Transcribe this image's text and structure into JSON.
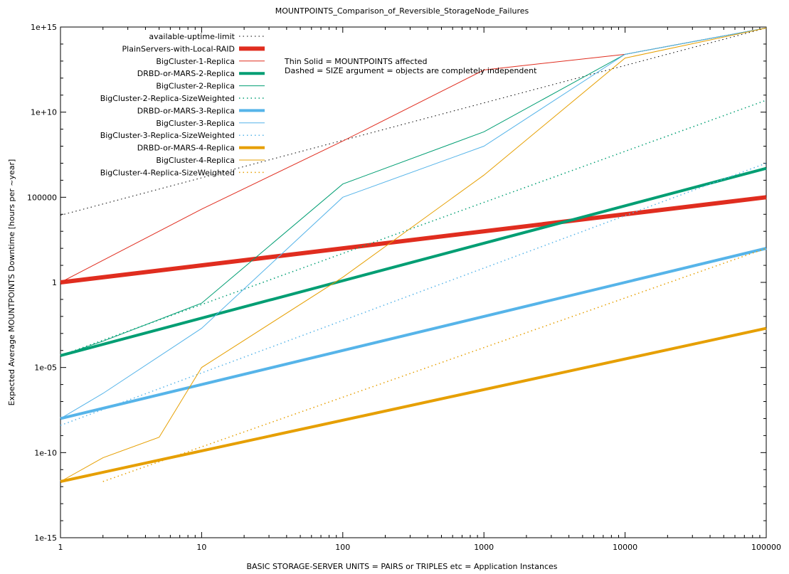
{
  "chart_data": {
    "type": "line",
    "title": "MOUNTPOINTS_Comparison_of_Reversible_StorageNode_Failures",
    "xlabel": "BASIC STORAGE-SERVER UNITS = PAIRS or TRIPLES etc = Application Instances",
    "ylabel": "Expected Average MOUNTPOINTS Downtime [hours per ~year]",
    "xscale": "log",
    "yscale": "log",
    "xlim": [
      1,
      100000
    ],
    "ylim": [
      1e-15,
      1000000000000000.0
    ],
    "x_ticks": [
      {
        "v": 1,
        "label": "1"
      },
      {
        "v": 10,
        "label": "10"
      },
      {
        "v": 100,
        "label": "100"
      },
      {
        "v": 1000,
        "label": "1000"
      },
      {
        "v": 10000,
        "label": "10000"
      },
      {
        "v": 100000,
        "label": "100000"
      }
    ],
    "y_ticks": [
      {
        "v": 1e-15,
        "label": "1e-15"
      },
      {
        "v": 1e-10,
        "label": "1e-10"
      },
      {
        "v": 1e-05,
        "label": "1e-05"
      },
      {
        "v": 1,
        "label": "1"
      },
      {
        "v": 100000.0,
        "label": "100000"
      },
      {
        "v": 10000000000.0,
        "label": "1e+10"
      },
      {
        "v": 1000000000000000.0,
        "label": "1e+15"
      }
    ],
    "grid": false,
    "legend_position": "top-left",
    "annotations": [
      "Thin Solid = MOUNTPOINTS affected",
      "Dashed = SIZE argument = objects are completely independent"
    ],
    "series": [
      {
        "name": "available-uptime-limit",
        "color": "#000000",
        "style": "dotted",
        "width": 1,
        "x": [
          1,
          100000
        ],
        "y": [
          8760,
          876000000000000
        ]
      },
      {
        "name": "PlainServers-with-Local-RAID",
        "color": "#e02d1f",
        "style": "solid",
        "width": 6,
        "x": [
          1,
          100000
        ],
        "y": [
          1,
          100000
        ]
      },
      {
        "name": "BigCluster-1-Replica",
        "color": "#e02d1f",
        "style": "solid",
        "width": 1,
        "x": [
          1,
          10,
          100,
          1000,
          10000,
          100000
        ],
        "y": [
          1,
          20000,
          200000000,
          3000000000000,
          25000000000000,
          876000000000000
        ]
      },
      {
        "name": "DRBD-or-MARS-2-Replica",
        "color": "#009e73",
        "style": "solid",
        "width": 4,
        "x": [
          1,
          100000
        ],
        "y": [
          5e-05,
          5000000
        ]
      },
      {
        "name": "BigCluster-2-Replica",
        "color": "#009e73",
        "style": "solid",
        "width": 1,
        "x": [
          1,
          2,
          10,
          100,
          1000,
          10000,
          100000
        ],
        "y": [
          5e-05,
          0.00035,
          0.06,
          600000,
          700000000,
          25000000000000,
          876000000000000
        ]
      },
      {
        "name": "BigCluster-2-Replica-SizeWeighted",
        "color": "#009e73",
        "style": "dotted",
        "width": 1.5,
        "x": [
          1,
          100000
        ],
        "y": [
          5e-05,
          50000000000
        ]
      },
      {
        "name": "DRBD-or-MARS-3-Replica",
        "color": "#56b4e9",
        "style": "solid",
        "width": 4,
        "x": [
          1,
          100000
        ],
        "y": [
          1e-08,
          100
        ]
      },
      {
        "name": "BigCluster-3-Replica",
        "color": "#56b4e9",
        "style": "solid",
        "width": 1,
        "x": [
          1,
          2,
          10,
          100,
          1000,
          10000,
          100000
        ],
        "y": [
          1e-08,
          3e-07,
          0.002,
          100000,
          100000000,
          25000000000000,
          876000000000000
        ]
      },
      {
        "name": "BigCluster-3-Replica-SizeWeighted",
        "color": "#56b4e9",
        "style": "dotted",
        "width": 1.5,
        "x": [
          1,
          100000
        ],
        "y": [
          4e-09,
          10000000
        ]
      },
      {
        "name": "DRBD-or-MARS-4-Replica",
        "color": "#e69f00",
        "style": "solid",
        "width": 4,
        "x": [
          1,
          100000
        ],
        "y": [
          2e-12,
          0.002
        ]
      },
      {
        "name": "BigCluster-4-Replica",
        "color": "#e69f00",
        "style": "solid",
        "width": 1,
        "x": [
          1,
          2,
          5,
          10,
          100,
          1000,
          10000,
          100000
        ],
        "y": [
          2e-12,
          5e-11,
          8e-10,
          1e-05,
          2,
          2000000,
          15000000000000,
          876000000000000
        ]
      },
      {
        "name": "BigCluster-4-Replica-SizeWeighted",
        "color": "#e69f00",
        "style": "dotted",
        "width": 1.5,
        "x": [
          2,
          100000
        ],
        "y": [
          2e-12,
          100
        ]
      }
    ]
  }
}
